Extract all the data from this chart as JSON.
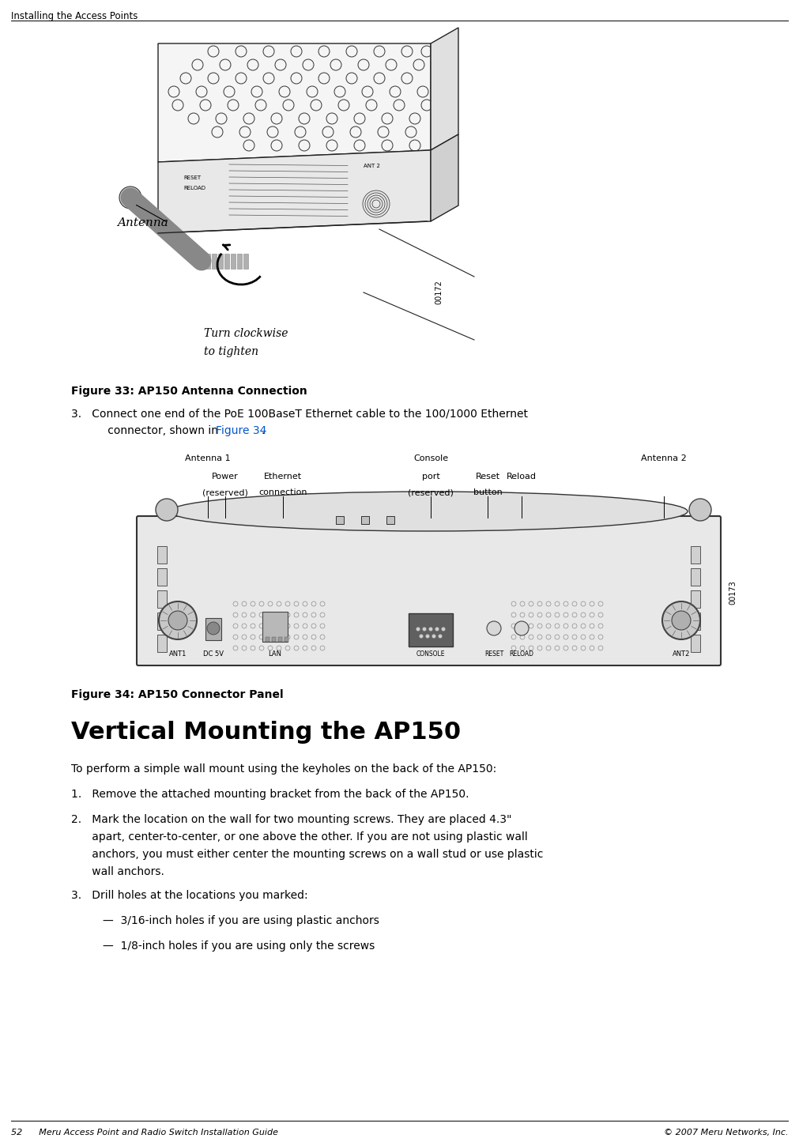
{
  "bg_color": "#ffffff",
  "header_text": "Installing the Access Points",
  "figure_width": 10.11,
  "figure_height": 14.5,
  "dpi": 100,
  "footer_left": "52      Meru Access Point and Radio Switch Installation Guide",
  "footer_right": "© 2007 Meru Networks, Inc.",
  "fig33_caption": "Figure 33: AP150 Antenna Connection",
  "fig34_caption": "Figure 34: AP150 Connector Panel",
  "section_title": "Vertical Mounting the AP150",
  "section_intro": "To perform a simple wall mount using the keyholes on the back of the AP150:",
  "fig33_id": "00172",
  "fig34_id": "00173",
  "antenna_label": "Antenna",
  "turn_line1": "Turn clockwise",
  "turn_line2": "to tighten",
  "step3_line1": "3.   Connect one end of the PoE 100BaseT Ethernet cable to the 100/1000 Ethernet",
  "step3_line2": "      connector, shown in ",
  "step3_link": "Figure 34",
  "step3_after": ".",
  "item1": "1.   Remove the attached mounting bracket from the back of the AP150.",
  "item2a": "2.   Mark the location on the wall for two mounting screws. They are placed 4.3\"",
  "item2b": "      apart, center-to-center, or one above the other. If you are not using plastic wall",
  "item2c": "      anchors, you must either center the mounting screws on a wall stud or use plastic",
  "item2d": "      wall anchors. ",
  "item3": "3.   Drill holes at the locations you marked:",
  "bullet1": "—  3/16-inch holes if you are using plastic anchors",
  "bullet2": "—  1/8-inch holes if you are using only the screws",
  "lbl_antenna1": "Antenna 1",
  "lbl_antenna2": "Antenna 2",
  "lbl_power": "Power",
  "lbl_power2": "(reserved)",
  "lbl_ethernet": "Ethernet",
  "lbl_ethernet2": "connection",
  "lbl_console": "Console",
  "lbl_port": "port",
  "lbl_reserved2": "(reserved)",
  "lbl_reset": "Reset",
  "lbl_button": "button",
  "lbl_reload": "Reload",
  "con_ant1": "ANT1",
  "con_ant2": "ANT2",
  "con_dc5v": "DC 5V",
  "con_lan": "LAN",
  "con_console": "CONSOLE",
  "con_reset": "RESET",
  "con_reload": "RELOAD"
}
